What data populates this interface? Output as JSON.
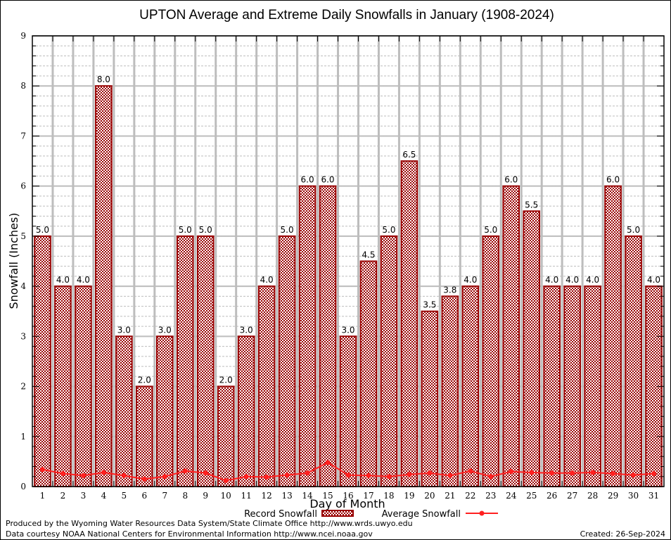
{
  "chart_data": {
    "type": "bar",
    "title": "UPTON Average and Extreme Daily Snowfalls in January (1908-2024)",
    "xlabel": "Day of Month",
    "ylabel": "Snowfall (Inches)",
    "ylim": [
      0,
      9
    ],
    "yticks": [
      "0",
      "1",
      "2",
      "3",
      "4",
      "5",
      "6",
      "7",
      "8",
      "9"
    ],
    "grid": true,
    "legend_position": "bottom-center",
    "categories": [
      "1",
      "2",
      "3",
      "4",
      "5",
      "6",
      "7",
      "8",
      "9",
      "10",
      "11",
      "12",
      "13",
      "14",
      "15",
      "16",
      "17",
      "18",
      "19",
      "20",
      "21",
      "22",
      "23",
      "24",
      "25",
      "26",
      "27",
      "28",
      "29",
      "30",
      "31"
    ],
    "series": [
      {
        "name": "Record Snowfall",
        "kind": "bar",
        "color": "#990000",
        "values": [
          5.0,
          4.0,
          4.0,
          8.0,
          3.0,
          2.0,
          3.0,
          5.0,
          5.0,
          2.0,
          3.0,
          4.0,
          5.0,
          6.0,
          6.0,
          3.0,
          4.5,
          5.0,
          6.5,
          3.5,
          3.8,
          4.0,
          5.0,
          6.0,
          5.5,
          4.0,
          4.0,
          4.0,
          6.0,
          5.0,
          4.0
        ],
        "labels": [
          "5.0",
          "4.0",
          "4.0",
          "8.0",
          "3.0",
          "2.0",
          "3.0",
          "5.0",
          "5.0",
          "2.0",
          "3.0",
          "4.0",
          "5.0",
          "6.0",
          "6.0",
          "3.0",
          "4.5",
          "5.0",
          "6.5",
          "3.5",
          "3.8",
          "4.0",
          "5.0",
          "6.0",
          "5.5",
          "4.0",
          "4.0",
          "4.0",
          "6.0",
          "5.0",
          "4.0"
        ]
      },
      {
        "name": "Average Snowfall",
        "kind": "line",
        "color": "#ff2020",
        "values": [
          0.34,
          0.26,
          0.22,
          0.28,
          0.22,
          0.15,
          0.2,
          0.31,
          0.27,
          0.12,
          0.2,
          0.19,
          0.23,
          0.27,
          0.48,
          0.23,
          0.22,
          0.2,
          0.24,
          0.27,
          0.22,
          0.31,
          0.2,
          0.3,
          0.28,
          0.27,
          0.27,
          0.28,
          0.26,
          0.23,
          0.26
        ]
      }
    ]
  },
  "footer": {
    "line1": "Produced by the Wyoming Water Resources Data System/State Climate Office http://www.wrds.uwyo.edu",
    "line2": "Data courtesy NOAA National Centers for Environmental Information http://www.ncei.noaa.gov",
    "created": "Created: 26-Sep-2024"
  }
}
